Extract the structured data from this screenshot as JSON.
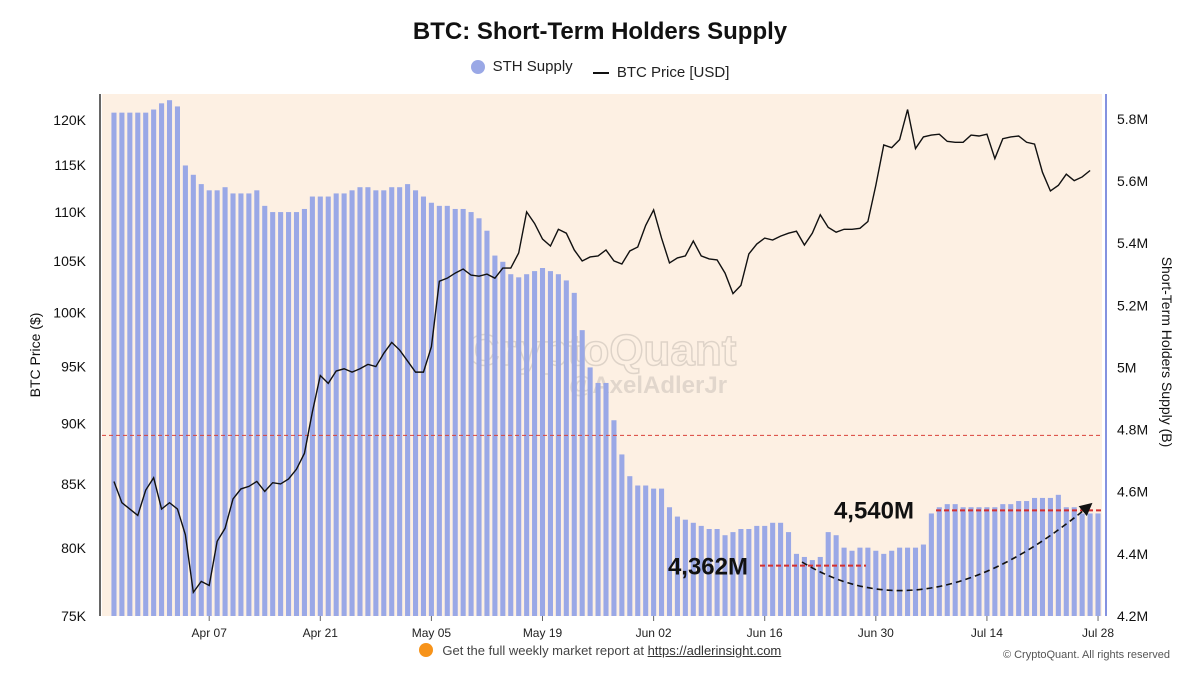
{
  "chart_data": {
    "type": "bar+line",
    "title": "BTC: Short-Term Holders Supply",
    "legend": [
      {
        "name": "STH Supply",
        "marker": "circle",
        "color": "#9aa8e6"
      },
      {
        "name": "BTC Price [USD]",
        "marker": "line",
        "color": "#111111"
      }
    ],
    "legend_placement": "top-center",
    "y_left": {
      "label": "BTC Price ($)",
      "scale": "log",
      "ticks": [
        "75K",
        "80K",
        "85K",
        "90K",
        "95K",
        "100K",
        "105K",
        "110K",
        "115K",
        "120K"
      ],
      "tick_values": [
        75000,
        80000,
        85000,
        90000,
        95000,
        100000,
        105000,
        110000,
        115000,
        120000
      ],
      "range": [
        75000,
        123000
      ]
    },
    "y_right": {
      "label": "Short-Term Holders Supply (B)",
      "ticks": [
        "4.2M",
        "4.4M",
        "4.6M",
        "4.8M",
        "5M",
        "5.2M",
        "5.4M",
        "5.6M",
        "5.8M"
      ],
      "tick_values": [
        4.2,
        4.4,
        4.6,
        4.8,
        5.0,
        5.2,
        5.4,
        5.6,
        5.8
      ],
      "range": [
        4.2,
        5.88
      ]
    },
    "x_ticks": [
      "Apr 07",
      "Apr 21",
      "May 05",
      "May 19",
      "Jun 02",
      "Jun 16",
      "Jun 30",
      "Jul 14",
      "Jul 28"
    ],
    "start_date": "2025-03-26",
    "series": [
      {
        "name": "STH Supply",
        "type": "bar",
        "color": "#9aa8e6",
        "values": [
          5.82,
          5.82,
          5.82,
          5.82,
          5.82,
          5.83,
          5.85,
          5.86,
          5.84,
          5.65,
          5.62,
          5.59,
          5.57,
          5.57,
          5.58,
          5.56,
          5.56,
          5.56,
          5.57,
          5.52,
          5.5,
          5.5,
          5.5,
          5.5,
          5.51,
          5.55,
          5.55,
          5.55,
          5.56,
          5.56,
          5.57,
          5.58,
          5.58,
          5.57,
          5.57,
          5.58,
          5.58,
          5.59,
          5.57,
          5.55,
          5.53,
          5.52,
          5.52,
          5.51,
          5.51,
          5.5,
          5.48,
          5.44,
          5.36,
          5.34,
          5.3,
          5.29,
          5.3,
          5.31,
          5.32,
          5.31,
          5.3,
          5.28,
          5.24,
          5.12,
          5.0,
          4.95,
          4.95,
          4.83,
          4.72,
          4.65,
          4.62,
          4.62,
          4.61,
          4.61,
          4.55,
          4.52,
          4.51,
          4.5,
          4.49,
          4.48,
          4.48,
          4.46,
          4.47,
          4.48,
          4.48,
          4.49,
          4.49,
          4.5,
          4.5,
          4.47,
          4.4,
          4.39,
          4.38,
          4.39,
          4.47,
          4.46,
          4.42,
          4.41,
          4.42,
          4.42,
          4.41,
          4.4,
          4.41,
          4.42,
          4.42,
          4.42,
          4.43,
          4.53,
          4.55,
          4.56,
          4.56,
          4.55,
          4.55,
          4.55,
          4.55,
          4.55,
          4.56,
          4.56,
          4.57,
          4.57,
          4.58,
          4.58,
          4.58,
          4.59,
          4.55,
          4.55,
          4.53,
          4.53,
          4.53
        ]
      },
      {
        "name": "BTC Price [USD]",
        "type": "line",
        "color": "#111111",
        "values": [
          85200,
          83500,
          83000,
          82500,
          84500,
          85500,
          83000,
          83500,
          83000,
          81000,
          76700,
          77500,
          77200,
          80500,
          81500,
          83800,
          84600,
          84800,
          85200,
          84400,
          85100,
          85000,
          85400,
          86200,
          87500,
          91000,
          94200,
          93500,
          94600,
          94800,
          94500,
          94800,
          95200,
          95000,
          96200,
          97200,
          96500,
          95500,
          94500,
          94500,
          96800,
          103000,
          103300,
          103800,
          104200,
          103600,
          103500,
          103700,
          103300,
          104300,
          104300,
          105800,
          110000,
          108800,
          107200,
          106500,
          108200,
          107800,
          106100,
          105000,
          105400,
          105500,
          106100,
          105000,
          104700,
          106000,
          106400,
          108600,
          110200,
          107300,
          104800,
          105300,
          105500,
          107000,
          105500,
          105200,
          105100,
          103800,
          101800,
          102600,
          105700,
          106700,
          107300,
          107100,
          107500,
          107800,
          108000,
          106600,
          107800,
          109700,
          108400,
          107900,
          108200,
          108200,
          108300,
          109000,
          112800,
          117200,
          116900,
          117800,
          121200,
          116800,
          118100,
          118300,
          118400,
          117600,
          117500,
          117500,
          118300,
          118200,
          118400,
          115700,
          117900,
          118100,
          118200,
          117500,
          117300,
          114200,
          112200,
          112800,
          114000,
          113300,
          113700,
          114400
        ]
      }
    ],
    "reference_lines": [
      {
        "axis": "left",
        "value": 89000,
        "color": "#d9413a",
        "style": "dashed"
      }
    ],
    "annotations": [
      {
        "text": "4,362M",
        "value_right": 4.362
      },
      {
        "text": "4,540M",
        "value_right": 4.54
      }
    ],
    "grid": false,
    "background": "#fdf0e3"
  },
  "watermark": {
    "logo": "CryptoQuant",
    "handle": "@AxelAdlerJr"
  },
  "footer": {
    "text": "Get the full weekly market report at",
    "link": "https://adlerinsight.com",
    "copyright": "© CryptoQuant. All rights reserved"
  }
}
